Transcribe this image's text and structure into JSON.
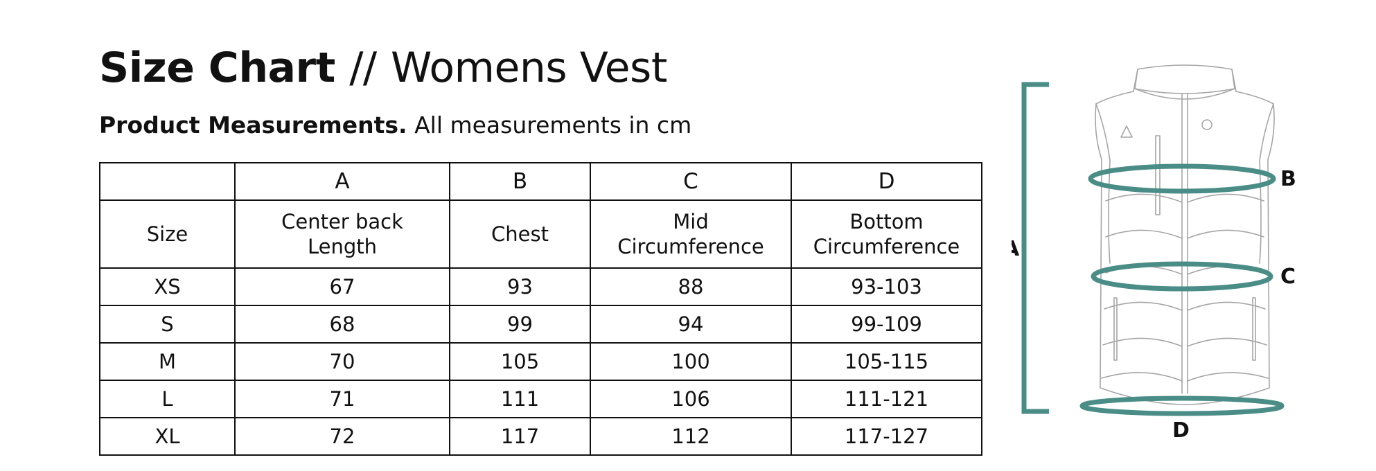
{
  "title": {
    "bold": "Size Chart",
    "separator": "//",
    "light": "Womens Vest"
  },
  "subtitle": {
    "bold": "Product Measurements.",
    "light": "All measurements in cm"
  },
  "table": {
    "letter_headers": [
      "",
      "A",
      "B",
      "C",
      "D"
    ],
    "desc_headers": [
      "Size",
      [
        "Center back",
        "Length"
      ],
      "Chest",
      [
        "Mid",
        "Circumference"
      ],
      [
        "Bottom",
        "Circumference"
      ]
    ],
    "rows": [
      [
        "XS",
        "67",
        "93",
        "88",
        "93-103"
      ],
      [
        "S",
        "68",
        "99",
        "94",
        "99-109"
      ],
      [
        "M",
        "70",
        "105",
        "100",
        "105-115"
      ],
      [
        "L",
        "71",
        "111",
        "106",
        "111-121"
      ],
      [
        "XL",
        "72",
        "117",
        "112",
        "117-127"
      ]
    ]
  },
  "diagram": {
    "labels": {
      "a": "A",
      "b": "B",
      "c": "C",
      "d": "D"
    },
    "accent_color": "#4a8d86",
    "outline_color": "#9a9a9a"
  }
}
